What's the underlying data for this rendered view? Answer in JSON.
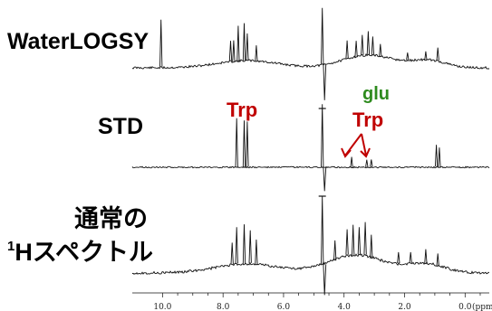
{
  "labels": {
    "waterlogsy": "WaterLOGSY",
    "std": "STD",
    "normal_line1": "通常の",
    "normal_sup": "1",
    "normal_line2": "Hスペクトル"
  },
  "annotations": {
    "trp_left": "Trp",
    "trp_right": "Trp",
    "glu": "glu"
  },
  "colors": {
    "trp": "#c00000",
    "glu": "#2e8b1e",
    "spectrum": "#111111"
  },
  "chart_data": {
    "type": "line",
    "xlabel": "(ppm",
    "x_ticks": [
      "10.0",
      "8.0",
      "6.0",
      "4.0",
      "2.0",
      "0.0"
    ],
    "x_range": [
      11.0,
      -0.8
    ],
    "x_reversed": true,
    "series": [
      {
        "name": "WaterLOGSY",
        "peaks_ppm": [
          10.05,
          7.75,
          7.65,
          7.5,
          7.3,
          7.2,
          6.9,
          4.72,
          3.9,
          3.6,
          3.4,
          3.2,
          3.05,
          2.8,
          1.9,
          1.3,
          0.9
        ]
      },
      {
        "name": "STD",
        "peaks_ppm": [
          7.55,
          7.3,
          7.2,
          4.72,
          3.75,
          3.25,
          3.1,
          0.95,
          0.85
        ]
      },
      {
        "name": "通常の1Hスペクトル",
        "peaks_ppm": [
          7.7,
          7.55,
          7.3,
          7.1,
          6.9,
          4.72,
          4.3,
          3.9,
          3.7,
          3.5,
          3.3,
          3.1,
          2.2,
          1.8,
          1.3,
          0.9
        ]
      }
    ]
  }
}
